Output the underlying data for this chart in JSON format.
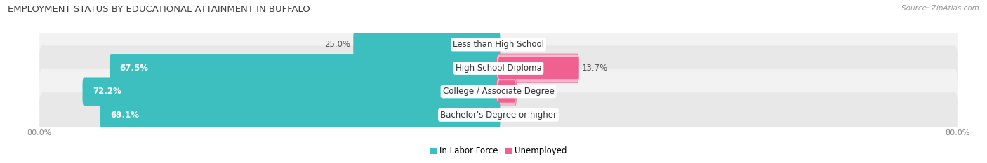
{
  "title": "EMPLOYMENT STATUS BY EDUCATIONAL ATTAINMENT IN BUFFALO",
  "source": "Source: ZipAtlas.com",
  "categories": [
    "Less than High School",
    "High School Diploma",
    "College / Associate Degree",
    "Bachelor's Degree or higher"
  ],
  "labor_force": [
    25.0,
    67.5,
    72.2,
    69.1
  ],
  "unemployed": [
    0.0,
    13.7,
    2.8,
    0.0
  ],
  "labor_force_color": "#3DBFBF",
  "unemployed_color": "#F06090",
  "unemployed_light_color": "#F9B8CC",
  "row_bg_color_even": "#F2F2F2",
  "row_bg_color_odd": "#E8E8E8",
  "axis_min": -80.0,
  "axis_max": 80.0,
  "label_fontsize": 8.5,
  "title_fontsize": 9.5,
  "tick_fontsize": 8,
  "source_fontsize": 7.5,
  "figsize": [
    14.06,
    2.33
  ],
  "dpi": 100
}
